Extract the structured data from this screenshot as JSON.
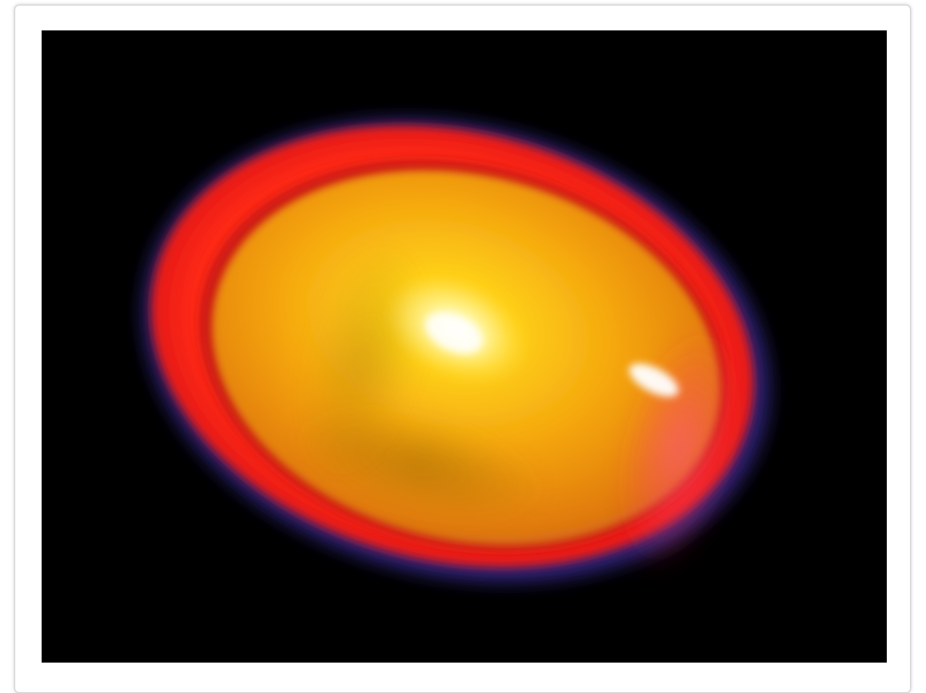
{
  "figure": {
    "alt": "",
    "colors": {
      "background": "#000000",
      "outer_halo": "#1b2a6e",
      "shell": "#e21a12",
      "core": "#f3a60d",
      "core_dark": "#c57508",
      "highlight": "#fff7b0",
      "specular": "#ffffff",
      "frame_border": "#d4d4d4",
      "page_background": "#ffffff"
    }
  }
}
